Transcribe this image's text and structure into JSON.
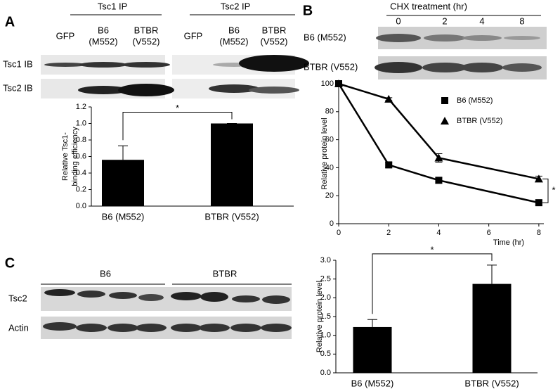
{
  "panel_labels": [
    "A",
    "B",
    "C"
  ],
  "panel_a": {
    "ip_headers": [
      "Tsc1 IP",
      "Tsc2 IP"
    ],
    "lanes": [
      [
        "GFP"
      ],
      [
        "B6",
        "(M552)"
      ],
      [
        "BTBR",
        "(V552)"
      ]
    ],
    "rows": [
      "Tsc1 IB",
      "Tsc2 IB"
    ]
  },
  "panel_b": {
    "header": "CHX treatment (hr)",
    "timepoints": [
      "0",
      "2",
      "4",
      "8"
    ],
    "rows": [
      "B6 (M552)",
      "BTBR (V552)"
    ]
  },
  "panel_c": {
    "groups": [
      "B6",
      "BTBR"
    ],
    "rows": [
      "Tsc2",
      "Actin"
    ]
  },
  "chart_data": [
    {
      "type": "bar",
      "ylabel": [
        "Relative Tsc1-",
        "binding efficiency"
      ],
      "categories": [
        "B6 (M552)",
        "BTBR (V552)"
      ],
      "values": [
        0.56,
        1.0
      ],
      "errors": [
        0.17,
        0
      ],
      "color": "#000000",
      "ylim": [
        0,
        1.2
      ],
      "yticks": [
        {
          "value": 0,
          "label": "0.0"
        },
        0.2,
        0.4,
        0.6,
        0.8,
        {
          "value": 1,
          "label": "1.0"
        },
        1.2
      ],
      "annotation": "*"
    },
    {
      "type": "line",
      "xlabel": "Time (hr)",
      "ylabel": "Relative protein level",
      "x": [
        0,
        2,
        4,
        8
      ],
      "series": [
        {
          "name": "B6 (M552)",
          "color": "#000000",
          "marker": "square",
          "values": [
            100,
            42,
            31,
            15
          ],
          "errors": [
            1,
            2,
            2,
            2
          ]
        },
        {
          "name": "BTBR (V552)",
          "color": "#000000",
          "marker": "triangle",
          "values": [
            100,
            89,
            47,
            32
          ],
          "errors": [
            1,
            1,
            3,
            2
          ]
        }
      ],
      "xlim": [
        0,
        8.2
      ],
      "xticks": [
        0,
        2,
        4,
        6,
        8
      ],
      "ylim": [
        0,
        100
      ],
      "yticks": [
        0,
        20,
        40,
        60,
        80,
        100
      ],
      "annotation": "*"
    },
    {
      "type": "bar",
      "ylabel": [
        "Relative protein level"
      ],
      "categories": [
        "B6 (M552)",
        "BTBR (V552)"
      ],
      "values": [
        1.22,
        2.37
      ],
      "errors": [
        0.2,
        0.5
      ],
      "color": "#000000",
      "ylim": [
        0,
        3
      ],
      "yticks": [
        {
          "value": 0,
          "label": "0.0"
        },
        0.5,
        {
          "value": 1,
          "label": "1.0"
        },
        1.5,
        {
          "value": 2,
          "label": "2.0"
        },
        2.5,
        {
          "value": 3,
          "label": "3.0"
        }
      ],
      "annotation": "*"
    }
  ]
}
